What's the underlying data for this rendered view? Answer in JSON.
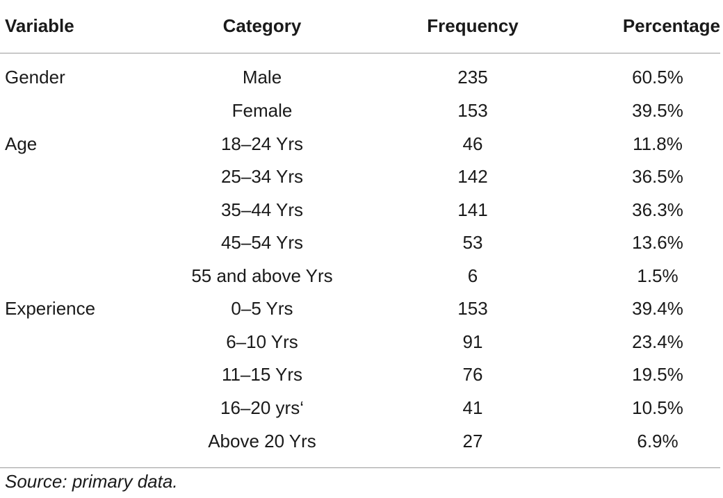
{
  "table": {
    "headers": [
      "Variable",
      "Category",
      "Frequency",
      "Percentage"
    ],
    "rows": [
      {
        "variable": "Gender",
        "category": "Male",
        "frequency": "235",
        "percentage": "60.5%"
      },
      {
        "variable": "",
        "category": "Female",
        "frequency": "153",
        "percentage": "39.5%"
      },
      {
        "variable": "Age",
        "category": "18–24 Yrs",
        "frequency": "46",
        "percentage": "11.8%"
      },
      {
        "variable": "",
        "category": "25–34 Yrs",
        "frequency": "142",
        "percentage": "36.5%"
      },
      {
        "variable": "",
        "category": "35–44 Yrs",
        "frequency": "141",
        "percentage": "36.3%"
      },
      {
        "variable": "",
        "category": "45–54 Yrs",
        "frequency": "53",
        "percentage": "13.6%"
      },
      {
        "variable": "",
        "category": "55 and above Yrs",
        "frequency": "6",
        "percentage": "1.5%"
      },
      {
        "variable": "Experience",
        "category": "0–5 Yrs",
        "frequency": "153",
        "percentage": "39.4%"
      },
      {
        "variable": "",
        "category": "6–10 Yrs",
        "frequency": "91",
        "percentage": "23.4%"
      },
      {
        "variable": "",
        "category": "11–15 Yrs",
        "frequency": "76",
        "percentage": "19.5%"
      },
      {
        "variable": "",
        "category": "16–20 yrs‘",
        "frequency": "41",
        "percentage": "10.5%"
      },
      {
        "variable": "",
        "category": "Above 20 Yrs",
        "frequency": "27",
        "percentage": "6.9%"
      }
    ]
  },
  "source_note": "Source: primary data."
}
